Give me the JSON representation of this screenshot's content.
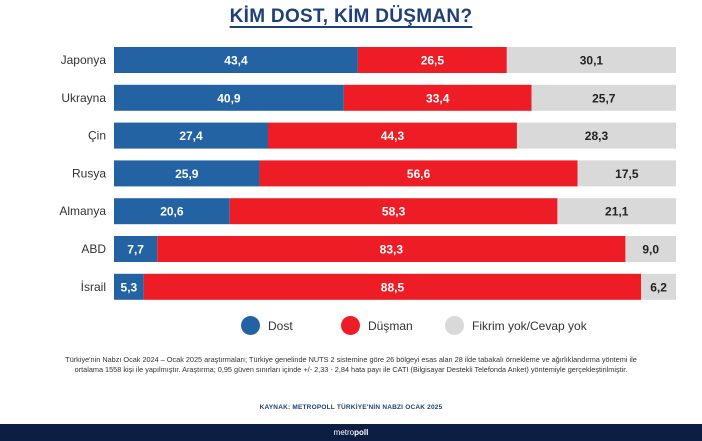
{
  "chart_data": {
    "type": "bar",
    "orientation": "horizontal",
    "stacked": true,
    "title": "KİM DOST, KİM DÜŞMAN?",
    "categories": [
      "Japonya",
      "Ukrayna",
      "Çin",
      "Rusya",
      "Almanya",
      "ABD",
      "İsrail"
    ],
    "series": [
      {
        "name": "Dost",
        "color": "#2463a3",
        "values": [
          43.4,
          40.9,
          27.4,
          25.9,
          20.6,
          7.7,
          5.3
        ],
        "labels": [
          "43,4",
          "40,9",
          "27,4",
          "25,9",
          "20,6",
          "7,7",
          "5,3"
        ]
      },
      {
        "name": "Düşman",
        "color": "#ee1c24",
        "values": [
          26.5,
          33.4,
          44.3,
          56.6,
          58.3,
          83.3,
          88.5
        ],
        "labels": [
          "26,5",
          "33,4",
          "44,3",
          "56,6",
          "58,3",
          "83,3",
          "88,5"
        ]
      },
      {
        "name": "Fikrim yok/Cevap yok",
        "color": "#d9d9d9",
        "values": [
          30.1,
          25.7,
          28.3,
          17.5,
          21.1,
          9.0,
          6.2
        ],
        "labels": [
          "30,1",
          "25,7",
          "28,3",
          "17,5",
          "21,1",
          "9,0",
          "6,2"
        ]
      }
    ],
    "xlim": [
      0,
      100
    ],
    "grid": false,
    "legend": "bottom"
  },
  "note": "Türkiye'nin Nabzı Ocak 2024 – Ocak 2025 araştırmaları; Türkiye genelinde NUTS 2 sistemine göre 26 bölgeyi esas alan 28 ilde tabakalı örnekleme ve ağırlıklandırma yöntemi ile ortalama 1558 kişi ile yapılmıştır. Araştırma; 0,95 güven sınırları içinde +/- 2,33 - 2,84 hata payı ile CATI (Bilgisayar Destekli Telefonda Anket) yöntemiyle gerçekleştirilmiştir.",
  "source": "KAYNAK: METROPOLL TÜRKİYE'NİN NABZI OCAK 2025",
  "footer": {
    "brand_part1": "metro",
    "brand_part2": "poll"
  }
}
